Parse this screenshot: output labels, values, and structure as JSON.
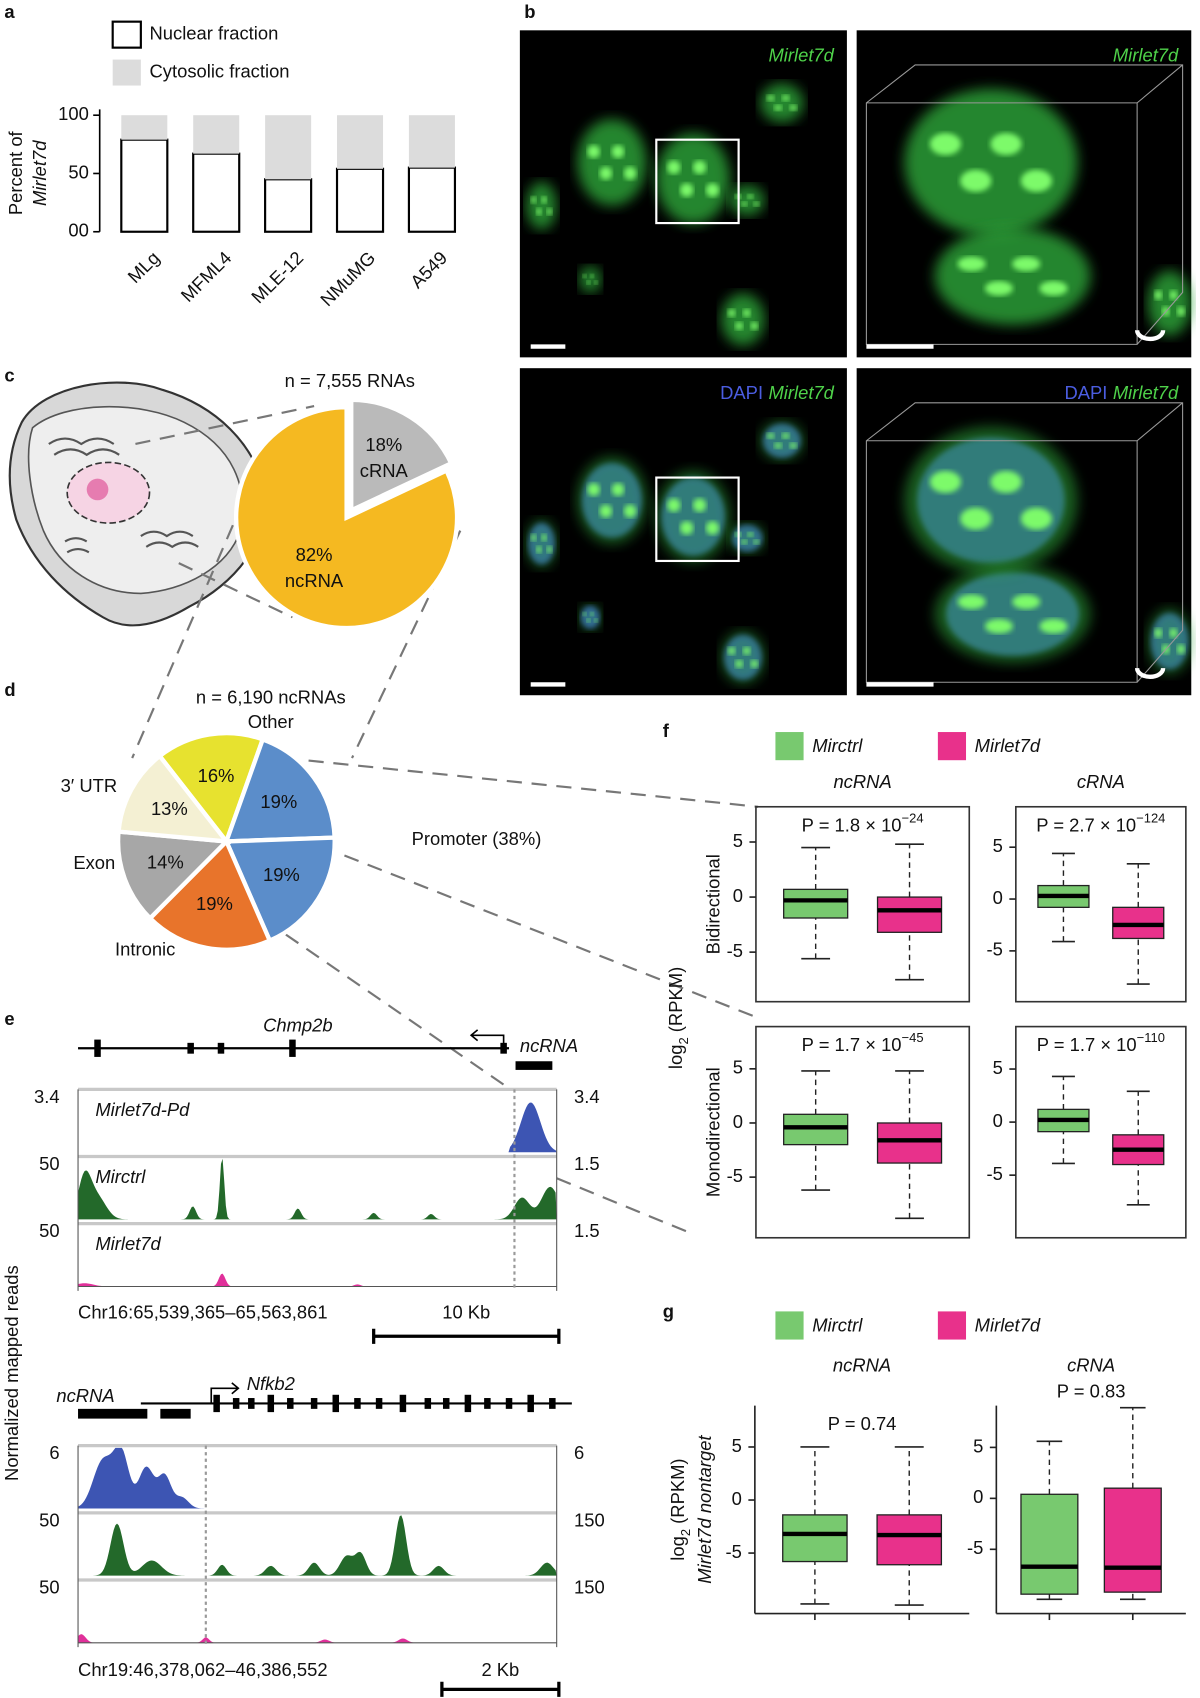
{
  "panel_labels": [
    "a",
    "b",
    "c",
    "d",
    "e",
    "f",
    "g"
  ],
  "chart_data": [
    {
      "type": "bar",
      "stacked": true,
      "ylabel": [
        "Percent of",
        "Mirlet7d"
      ],
      "categories": [
        "MLg",
        "MFML4",
        "MLE-12",
        "NMuMG",
        "A549"
      ],
      "series": [
        {
          "name": "Nuclear fraction",
          "color": "#ffffff",
          "values": [
            79,
            67,
            45,
            54,
            55
          ]
        },
        {
          "name": "Cytosolic fraction",
          "color": "#dcdcdc",
          "values": [
            21,
            33,
            55,
            46,
            45
          ]
        }
      ],
      "ylim": [
        0,
        105
      ],
      "yticks": [
        {
          "value": 0,
          "label": "00"
        },
        50,
        100
      ]
    },
    {
      "type": "pie",
      "title": "n = 7,555 RNAs",
      "categories": [
        "cRNA",
        "ncRNA"
      ],
      "values": [
        18,
        82
      ],
      "value_labels": [
        "18%",
        "82%"
      ],
      "colors": [
        "#bababa",
        "#f5b921"
      ]
    },
    {
      "type": "pie",
      "title": "n = 6,190 ncRNAs",
      "categories": [
        "Other",
        "Promoter (38%)",
        null,
        "Intronic",
        "Exon",
        "3′ UTR"
      ],
      "values": [
        16,
        19,
        19,
        19,
        14,
        13
      ],
      "value_labels": [
        "16%",
        "19%",
        "19%",
        "19%",
        "14%",
        "13%"
      ],
      "colors": [
        "#e7e22f",
        "#5b8dca",
        "#5b8dca",
        "#e8742b",
        "#a7a7a7",
        "#f4f0d3"
      ]
    },
    {
      "type": "box",
      "series": [
        {
          "name": "Mirctrl",
          "color": "#78c96f"
        },
        {
          "name": "Mirlet7d",
          "color": "#e8318b"
        }
      ],
      "columns": [
        "ncRNA",
        "cRNA"
      ],
      "ylabel": [
        "log",
        "2",
        " (RPKM)"
      ],
      "rows": [
        {
          "name": "Bidirectional",
          "plots": [
            {
              "annotation": {
                "text": "P = 1.8 × 10",
                "exponent": "−24"
              },
              "ylim": [
                -9.5,
                8.2
              ],
              "yticks": [
                -5,
                0,
                5
              ],
              "boxes": [
                [
                  -5.6,
                  -1.9,
                  -0.3,
                  0.7,
                  4.5
                ],
                [
                  -7.5,
                  -3.2,
                  -1.2,
                  0,
                  4.8
                ]
              ]
            },
            {
              "annotation": {
                "text": "P = 2.7 × 10",
                "exponent": "−124"
              },
              "ylim": [
                -9.9,
                8.9
              ],
              "yticks": [
                -5,
                0,
                5
              ],
              "boxes": [
                [
                  -4.1,
                  -0.8,
                  0.3,
                  1.3,
                  4.4
                ],
                [
                  -8.2,
                  -3.8,
                  -2.5,
                  -0.8,
                  3.4
                ]
              ]
            }
          ]
        },
        {
          "name": "Monodirectional",
          "plots": [
            {
              "annotation": {
                "text": "P = 1.7 × 10",
                "exponent": "−45"
              },
              "ylim": [
                -10.6,
                8.9
              ],
              "yticks": [
                -5,
                0,
                5
              ],
              "boxes": [
                [
                  -6.2,
                  -2,
                  -0.4,
                  0.8,
                  4.8
                ],
                [
                  -8.8,
                  -3.7,
                  -1.6,
                  0,
                  4.8
                ]
              ]
            },
            {
              "annotation": {
                "text": "P = 1.7 × 10",
                "exponent": "−110"
              },
              "ylim": [
                -10.9,
                9.0
              ],
              "yticks": [
                -5,
                0,
                5
              ],
              "boxes": [
                [
                  -3.9,
                  -0.9,
                  0.2,
                  1.2,
                  4.3
                ],
                [
                  -7.8,
                  -4,
                  -2.6,
                  -1.2,
                  2.9
                ]
              ]
            }
          ]
        }
      ]
    },
    {
      "type": "box",
      "series": [
        {
          "name": "Mirctrl",
          "color": "#78c96f"
        },
        {
          "name": "Mirlet7d",
          "color": "#e8318b"
        }
      ],
      "columns": [
        "ncRNA",
        "cRNA"
      ],
      "ylabel": [
        "log",
        "2",
        " (RPKM)"
      ],
      "ylabel_line2": "Mirlet7d nontarget",
      "rows": [
        {
          "plots": [
            {
              "annotation": {
                "text": "P = 0.74"
              },
              "ylim": [
                -10.7,
                8.9
              ],
              "yticks": [
                -5,
                0,
                5
              ],
              "boxes": [
                [
                  -9.8,
                  -5.8,
                  -3.2,
                  -1.4,
                  5
                ],
                [
                  -9.9,
                  -6.1,
                  -3.3,
                  -1.4,
                  5
                ]
              ]
            },
            {
              "annotation": {
                "text": "P = 0.83"
              },
              "ylim": [
                -11.3,
                9.1
              ],
              "yticks": [
                -5,
                0,
                5
              ],
              "boxes": [
                [
                  -9.9,
                  -9.4,
                  -6.7,
                  0.4,
                  5.6
                ],
                [
                  -9.9,
                  -9.2,
                  -6.8,
                  1.0,
                  8.9
                ]
              ]
            }
          ]
        }
      ]
    }
  ],
  "microscopy": {
    "panels": [
      {
        "label": [
          "Mirlet7d"
        ]
      },
      {
        "label": [
          "Mirlet7d"
        ]
      },
      {
        "label": [
          "DAPI",
          "Mirlet7d"
        ]
      },
      {
        "label": [
          "DAPI",
          "Mirlet7d"
        ]
      }
    ]
  },
  "genome_ylabel": "Normalized mapped reads",
  "genome_tracks": [
    {
      "gene": "Chmp2b",
      "ncrna": "ncRNA",
      "tracks": [
        {
          "name": "Mirlet7d-Pd",
          "color": "#3d55b3",
          "left": "3.4",
          "right": "3.4"
        },
        {
          "name": "Mirctrl",
          "color": "#23692a",
          "left": "50",
          "right": "1.5"
        },
        {
          "name": "Mirlet7d",
          "color": "#e0309a",
          "left": "50",
          "right": "1.5"
        }
      ],
      "coordinates": "Chr16:65,539,365–65,563,861",
      "scale": "10 Kb"
    },
    {
      "gene": "Nfkb2",
      "ncrna": "ncRNA",
      "tracks": [
        {
          "color": "#3d55b3",
          "left": "6",
          "right": "6"
        },
        {
          "color": "#23692a",
          "left": "50",
          "right": "150"
        },
        {
          "color": "#e0309a",
          "left": "50",
          "right": "150"
        }
      ],
      "coordinates": "Chr19:46,378,062–46,386,552",
      "scale": "2 Kb"
    }
  ]
}
